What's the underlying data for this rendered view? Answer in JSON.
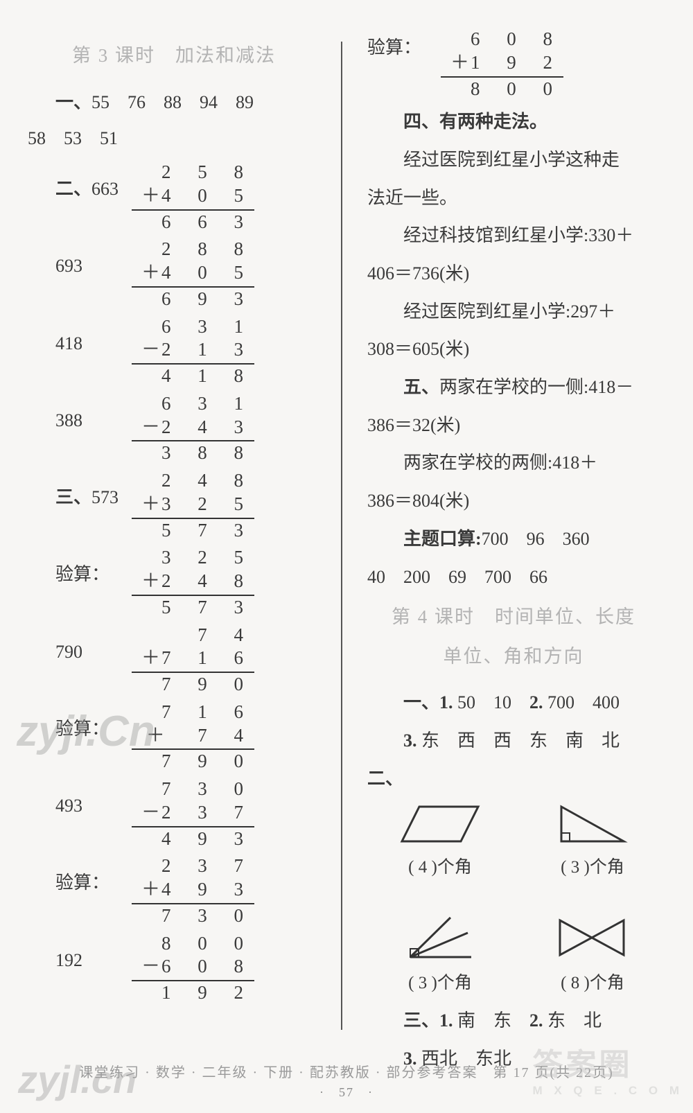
{
  "left": {
    "lesson_title": "第 3 课时　加法和减法",
    "q1_label": "一、",
    "q1_values": "55　76　88　94　89",
    "q1_line2": "58　53　51",
    "q2_label": "二、",
    "q2": [
      {
        "ans": "663",
        "r1": "2 5 8",
        "op": "＋",
        "r2": "4 0 5",
        "r3": "6 6 3"
      },
      {
        "ans": "693",
        "r1": "2 8 8",
        "op": "＋",
        "r2": "4 0 5",
        "r3": "6 9 3"
      },
      {
        "ans": "418",
        "r1": "6 3 1",
        "op": "－",
        "r2": "2 1 3",
        "r3": "4 1 8"
      },
      {
        "ans": "388",
        "r1": "6 3 1",
        "op": "－",
        "r2": "2 4 3",
        "r3": "3 8 8"
      }
    ],
    "q3_label": "三、",
    "q3": [
      {
        "ans": "573",
        "r1": "2 4 8",
        "op": "＋",
        "r2": "3 2 5",
        "r3": "5 7 3",
        "chk_label": "验算：",
        "c1": "3 2 5",
        "cop": "＋",
        "c2": "2 4 8",
        "c3": "5 7 3"
      },
      {
        "ans": "790",
        "r1": "  7 4",
        "op": "＋",
        "r2": "7 1 6",
        "r3": "7 9 0",
        "chk_label": "验算：",
        "c1": "7 1 6",
        "cop": "＋",
        "c2": "  7 4",
        "c3": "7 9 0"
      },
      {
        "ans": "493",
        "r1": "7 3 0",
        "op": "－",
        "r2": "2 3 7",
        "r3": "4 9 3",
        "chk_label": "验算：",
        "c1": "2 3 7",
        "cop": "＋",
        "c2": "4 9 3",
        "c3": "7 3 0"
      },
      {
        "ans": "192",
        "r1": "8 0 0",
        "op": "－",
        "r2": "6 0 8",
        "r3": "1 9 2",
        "chk_label": "",
        "c1": "",
        "cop": "",
        "c2": "",
        "c3": ""
      }
    ]
  },
  "right": {
    "check_last": {
      "label": "验算：",
      "r1": "6 0 8",
      "op": "＋",
      "r2": "1 9 2",
      "r3": "8 0 0"
    },
    "q4_title": "四、有两种走法。",
    "q4_p1": "经过医院到红星小学这种走",
    "q4_p1b": "法近一些。",
    "q4_p2": "经过科技馆到红星小学:330＋",
    "q4_p2b": "406＝736(米)",
    "q4_p3": "经过医院到红星小学:297＋",
    "q4_p3b": "308＝605(米)",
    "q5_a": "五、两家在学校的一侧:418－",
    "q5_ab": "386＝32(米)",
    "q5_b": "两家在学校的两侧:418＋",
    "q5_bb": "386＝804(米)",
    "kousuan_label": "主题口算:",
    "kousuan_l1": "700　96　360",
    "kousuan_l2": "40　200　69　700　66",
    "lesson4_title_a": "第 4 课时　时间单位、长度",
    "lesson4_title_b": "单位、角和方向",
    "l4_q1": "一、1. 50　10　2. 700　400",
    "l4_q1_3": "3. 东　西　西　东　南　北",
    "l4_q2_label": "二、",
    "shapes": [
      {
        "name": "parallelogram",
        "answer": "4"
      },
      {
        "name": "right-triangle",
        "answer": "3"
      },
      {
        "name": "angle-rays",
        "answer": "3"
      },
      {
        "name": "bowtie",
        "answer": "8"
      }
    ],
    "shape_label_tpl_a": "( ",
    "shape_label_tpl_b": " )个角",
    "l4_q3_a": "三、1. 南　东　2. 东　北",
    "l4_q3_b": "3. 西北　东北"
  },
  "footer": {
    "line": "课堂练习 · 数学 · 二年级 · 下册 · 配苏教版 · 部分参考答案　第 17 页(共 22页)",
    "page": "·　57　·"
  },
  "watermarks": {
    "wm1": "zyjl.Cn",
    "wm2": "zyjl.cn",
    "wm3a": "答案圈",
    "wm3b": "M X Q E . C O M"
  },
  "style": {
    "text_color": "#3a3a3a",
    "faint_color": "#b3b3b3",
    "line_color": "#333333",
    "background": "#f7f6f4"
  }
}
